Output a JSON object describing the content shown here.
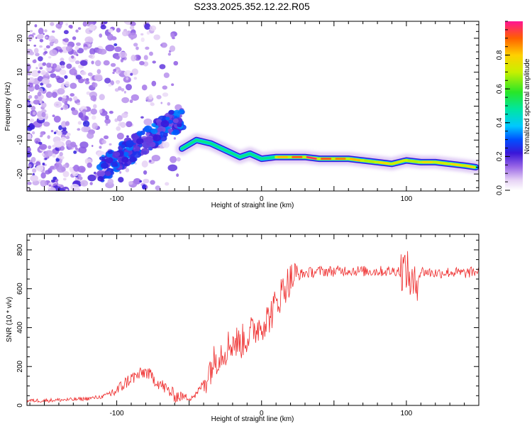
{
  "title": "S233.2025.352.12.22.R05",
  "chart_data": [
    {
      "type": "heatmap",
      "name": "spectrogram",
      "xlabel": "Height of straight line (km)",
      "ylabel": "Frequency (Hz)",
      "xlim": [
        -162,
        150
      ],
      "ylim": [
        -25,
        25
      ],
      "xticks": [
        -100,
        0,
        100
      ],
      "yticks": [
        -20,
        -10,
        0,
        10,
        20
      ],
      "colorbar": {
        "label": "Normalized spectral amplitude",
        "range": [
          0,
          1
        ],
        "ticks": [
          0.0,
          0.2,
          0.4,
          0.6,
          0.8
        ]
      },
      "ridge": {
        "description": "dominant frequency ridge",
        "x": [
          -55,
          -45,
          -35,
          -25,
          -15,
          -8,
          0,
          10,
          20,
          30,
          40,
          50,
          60,
          70,
          80,
          90,
          100,
          110,
          120,
          130,
          140,
          148
        ],
        "y": [
          -12.5,
          -10,
          -11,
          -13,
          -15,
          -14,
          -15.5,
          -15,
          -15,
          -15,
          -15.5,
          -15.5,
          -15.5,
          -16,
          -16.5,
          -17,
          -16,
          -16.5,
          -16.5,
          -17,
          -17.5,
          -18
        ],
        "amplitude": [
          0.35,
          0.4,
          0.35,
          0.3,
          0.3,
          0.35,
          0.5,
          0.85,
          0.95,
          1.0,
          0.95,
          0.9,
          0.85,
          0.7,
          0.8,
          0.75,
          0.7,
          0.8,
          0.75,
          0.8,
          0.8,
          0.7
        ]
      }
    },
    {
      "type": "line",
      "name": "snr",
      "xlabel": "Height of straight line (km)",
      "ylabel": "SNR (10 * v/v)",
      "xlim": [
        -162,
        150
      ],
      "ylim": [
        0,
        880
      ],
      "xticks": [
        -100,
        0,
        100
      ],
      "yticks": [
        0,
        200,
        400,
        600,
        800
      ],
      "color": "#ee2b2b",
      "series": [
        {
          "name": "SNR",
          "x": [
            -162,
            -150,
            -140,
            -130,
            -120,
            -110,
            -100,
            -95,
            -90,
            -85,
            -80,
            -75,
            -70,
            -65,
            -60,
            -55,
            -50,
            -45,
            -40,
            -35,
            -30,
            -25,
            -20,
            -15,
            -10,
            -5,
            0,
            5,
            10,
            15,
            20,
            25,
            30,
            40,
            50,
            60,
            70,
            80,
            90,
            100,
            105,
            110,
            120,
            130,
            140,
            150
          ],
          "y": [
            25,
            25,
            28,
            30,
            35,
            45,
            75,
            110,
            140,
            155,
            175,
            140,
            110,
            80,
            50,
            45,
            40,
            55,
            120,
            200,
            260,
            290,
            330,
            320,
            350,
            390,
            420,
            450,
            520,
            600,
            650,
            670,
            680,
            690,
            690,
            695,
            690,
            690,
            690,
            700,
            600,
            690,
            680,
            685,
            680,
            690
          ]
        }
      ]
    }
  ]
}
